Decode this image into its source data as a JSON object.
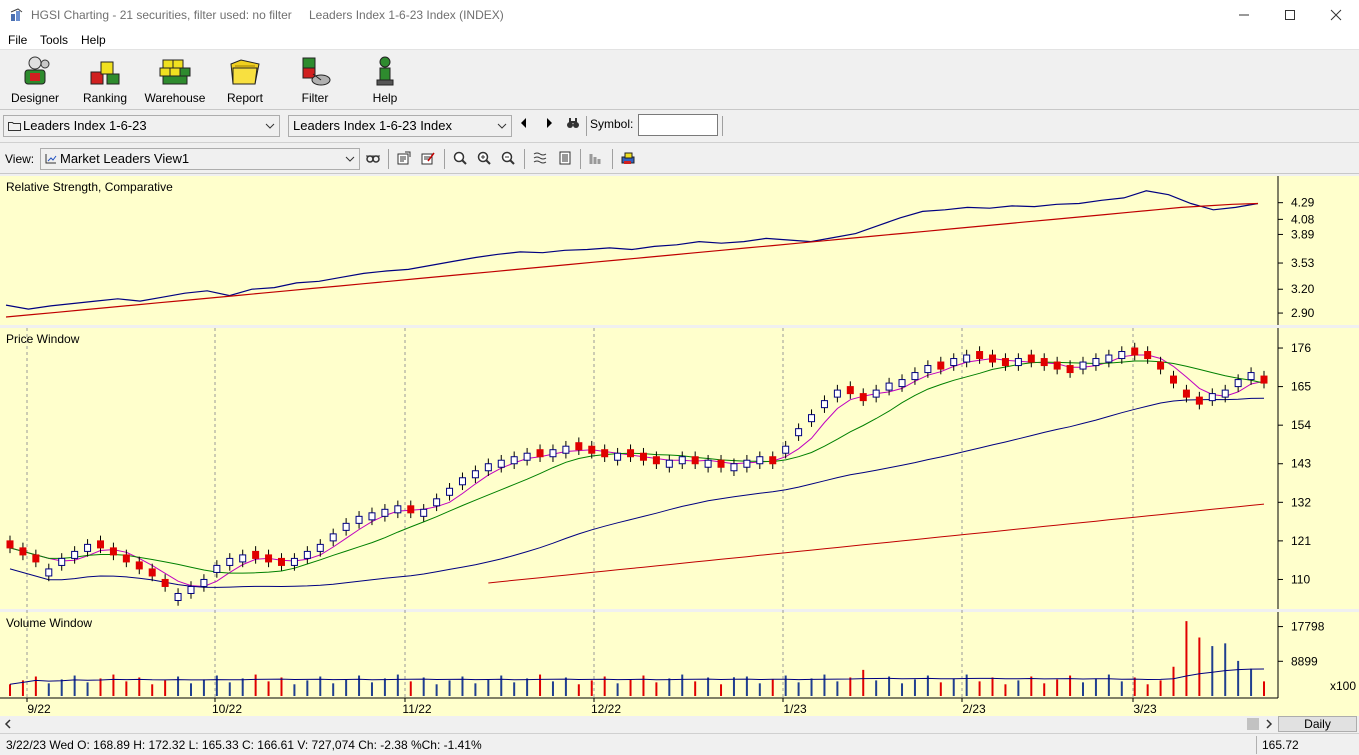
{
  "window": {
    "title": "HGSI Charting - 21 securities, filter used: no filter",
    "subtitle": "Leaders Index 1-6-23 Index (INDEX)"
  },
  "menu": [
    "File",
    "Tools",
    "Help"
  ],
  "toolbar": {
    "buttons": [
      {
        "label": "Designer",
        "icon": "designer-icon"
      },
      {
        "label": "Ranking",
        "icon": "ranking-icon"
      },
      {
        "label": "Warehouse",
        "icon": "warehouse-icon"
      },
      {
        "label": "Report",
        "icon": "report-icon"
      },
      {
        "label": "Filter",
        "icon": "filter-icon"
      },
      {
        "label": "Help",
        "icon": "help-icon"
      }
    ]
  },
  "selectors": {
    "list": "Leaders Index 1-6-23",
    "security": "Leaders Index 1-6-23 Index",
    "symbol_label": "Symbol:",
    "symbol_value": ""
  },
  "view": {
    "label": "View:",
    "selected": "Market Leaders View1"
  },
  "chart_data": {
    "type": "line",
    "panels": [
      {
        "title": "Relative Strength, Comparative",
        "ticks": [
          "4.29",
          "4.08",
          "3.89",
          "3.53",
          "3.20",
          "2.90"
        ],
        "series": [
          {
            "name": "",
            "color": "#000080",
            "values": [
              3.0,
              2.95,
              2.99,
              3.02,
              3.05,
              3.08,
              3.05,
              3.1,
              3.15,
              3.18,
              3.12,
              3.2,
              3.22,
              3.28,
              3.3,
              3.35,
              3.4,
              3.43,
              3.45,
              3.5,
              3.55,
              3.6,
              3.64,
              3.67,
              3.66,
              3.69,
              3.7,
              3.72,
              3.7,
              3.74,
              3.76,
              3.8,
              3.78,
              3.8,
              3.84,
              3.82,
              3.8,
              3.85,
              3.9,
              4.0,
              4.1,
              4.18,
              4.2,
              4.23,
              4.22,
              4.25,
              4.24,
              4.27,
              4.28,
              4.32,
              4.35,
              4.44,
              4.39,
              4.28,
              4.2,
              4.23,
              4.28
            ]
          },
          {
            "name": "",
            "color": "#c00000",
            "values": [
              2.85,
              2.88,
              2.91,
              2.94,
              2.97,
              3.0,
              3.03,
              3.06,
              3.09,
              3.12,
              3.15,
              3.18,
              3.21,
              3.24,
              3.27,
              3.3,
              3.33,
              3.36,
              3.39,
              3.42,
              3.45,
              3.48,
              3.51,
              3.54,
              3.57,
              3.6,
              3.63,
              3.66,
              3.69,
              3.72,
              3.75,
              3.78,
              3.81,
              3.84,
              3.87,
              3.9,
              3.93,
              3.96,
              3.99,
              4.02,
              4.05,
              4.08,
              4.11,
              4.14,
              4.17,
              4.2,
              4.23,
              4.25,
              4.27,
              4.28
            ]
          }
        ],
        "ylim": [
          2.8,
          4.5
        ]
      },
      {
        "title": "Price Window",
        "ticks": [
          "176",
          "165",
          "154",
          "143",
          "132",
          "121",
          "110"
        ],
        "ohlc_close": [
          119,
          117,
          115,
          113,
          116,
          118,
          120,
          119,
          117,
          115,
          113,
          111,
          108,
          106,
          108,
          110,
          114,
          116,
          117,
          116,
          115,
          114,
          116,
          118,
          120,
          123,
          126,
          128,
          129,
          130,
          131,
          129,
          130,
          133,
          136,
          139,
          141,
          143,
          144,
          145,
          146,
          145,
          147,
          148,
          147,
          146,
          145,
          146,
          145,
          144,
          143,
          144,
          145,
          143,
          144,
          142,
          143,
          144,
          145,
          143,
          148,
          153,
          157,
          161,
          164,
          163,
          161,
          164,
          166,
          167,
          169,
          171,
          170,
          173,
          174,
          173,
          172,
          171,
          173,
          172,
          171,
          170,
          169,
          172,
          173,
          174,
          175,
          174,
          173,
          170,
          166,
          162,
          160,
          163,
          164,
          167,
          169,
          166
        ],
        "up": [
          0,
          0,
          0,
          1,
          1,
          1,
          1,
          0,
          0,
          0,
          0,
          0,
          0,
          1,
          1,
          1,
          1,
          1,
          1,
          0,
          0,
          0,
          1,
          1,
          1,
          1,
          1,
          1,
          1,
          1,
          1,
          0,
          1,
          1,
          1,
          1,
          1,
          1,
          1,
          1,
          1,
          0,
          1,
          1,
          0,
          0,
          0,
          1,
          0,
          0,
          0,
          1,
          1,
          0,
          1,
          0,
          1,
          1,
          1,
          0,
          1,
          1,
          1,
          1,
          1,
          0,
          0,
          1,
          1,
          1,
          1,
          1,
          0,
          1,
          1,
          0,
          0,
          0,
          1,
          0,
          0,
          0,
          0,
          1,
          1,
          1,
          1,
          0,
          0,
          0,
          0,
          0,
          0,
          1,
          1,
          1,
          1,
          0
        ],
        "ma_series": [
          {
            "name": "",
            "color": "#c000c0"
          },
          {
            "name": "",
            "color": "#008000"
          },
          {
            "name": "",
            "color": "#000080"
          },
          {
            "name": "",
            "color": "#c00000"
          }
        ],
        "ylim": [
          103,
          180
        ]
      },
      {
        "title": "Volume Window",
        "ticks": [
          "17798",
          "8899"
        ],
        "multiplier": "x100",
        "ylim": [
          0,
          20000
        ]
      }
    ],
    "xaxis": {
      "tick_labels": [
        "9/22",
        "10/22",
        "11/22",
        "12/22",
        "1/23",
        "2/23",
        "3/23"
      ]
    },
    "grid": true
  },
  "periodicity": "Daily",
  "status": {
    "text": "3/22/23 Wed O: 168.89 H: 172.32 L: 165.33 C: 166.61 V: 727,074 Ch: -2.38 %Ch: -1.41%",
    "price": "165.72"
  }
}
